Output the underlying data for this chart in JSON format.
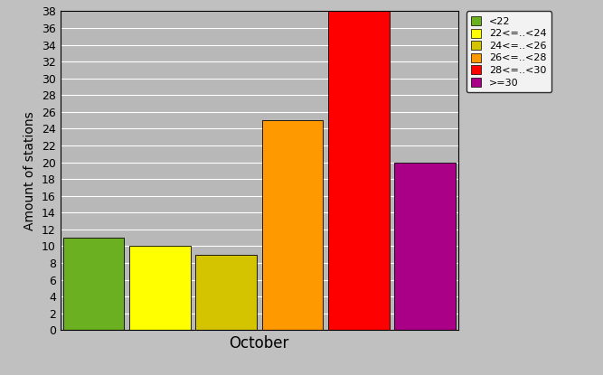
{
  "categories": [
    "<22",
    "22<=..<24",
    "24<=..<26",
    "26<=..<28",
    "28<=..<30",
    ">=30"
  ],
  "values": [
    11,
    10,
    9,
    25,
    38,
    20
  ],
  "colors": [
    "#6ab020",
    "#ffff00",
    "#d4c400",
    "#ff9900",
    "#ff0000",
    "#aa0088"
  ],
  "xlabel": "October",
  "ylabel": "Amount of stations",
  "ylim": [
    0,
    38
  ],
  "yticks": [
    0,
    2,
    4,
    6,
    8,
    10,
    12,
    14,
    16,
    18,
    20,
    22,
    24,
    26,
    28,
    30,
    32,
    34,
    36,
    38
  ],
  "background_color": "#c0c0c0",
  "plot_bg_color": "#b8b8b8",
  "legend_labels": [
    "<22",
    "22<=..<24",
    "24<=..<26",
    "26<=..<28",
    "28<=..<30",
    ">=30"
  ],
  "figsize": [
    6.67,
    4.15
  ],
  "dpi": 100
}
